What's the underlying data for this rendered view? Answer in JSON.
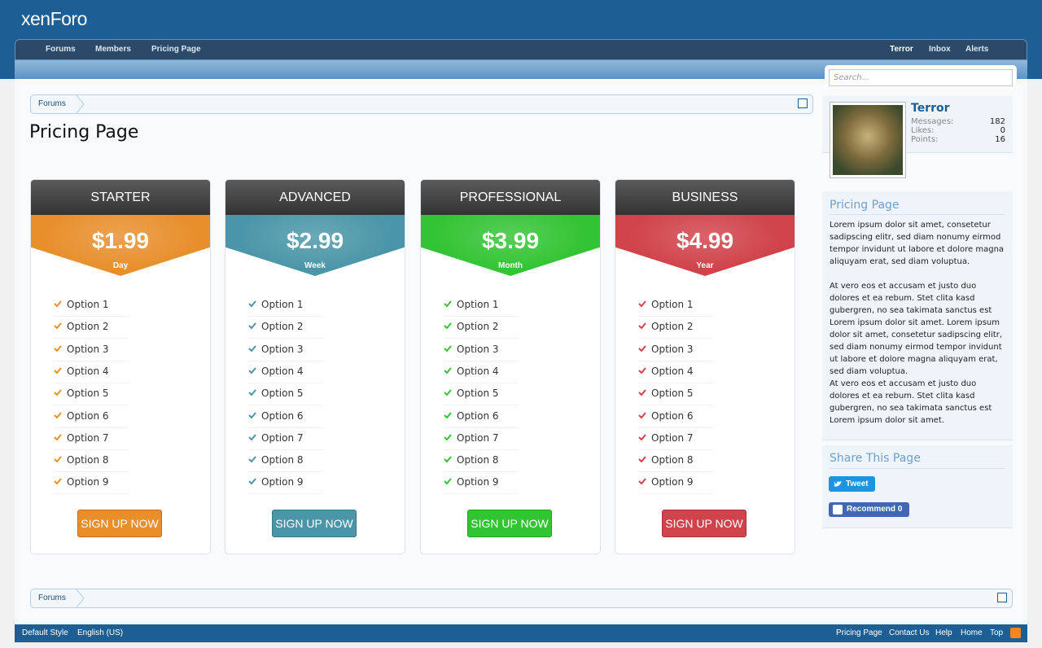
{
  "header": {
    "logo": "xenForo"
  },
  "nav": {
    "left": [
      "Forums",
      "Members",
      "Pricing Page"
    ],
    "right": [
      "Terror",
      "Inbox",
      "Alerts"
    ]
  },
  "search": {
    "placeholder": "Search..."
  },
  "breadcrumb": {
    "top": "Forums",
    "bottom": "Forums"
  },
  "page": {
    "title": "Pricing Page"
  },
  "plans": [
    {
      "name": "STARTER",
      "price": "$1.99",
      "period": "Day",
      "color": "#e88f2c",
      "options": [
        "Option 1",
        "Option 2",
        "Option 3",
        "Option 4",
        "Option 5",
        "Option 6",
        "Option 7",
        "Option 8",
        "Option 9"
      ],
      "button": "SIGN UP NOW"
    },
    {
      "name": "ADVANCED",
      "price": "$2.99",
      "period": "Week",
      "color": "#4a96a8",
      "options": [
        "Option 1",
        "Option 2",
        "Option 3",
        "Option 4",
        "Option 5",
        "Option 6",
        "Option 7",
        "Option 8",
        "Option 9"
      ],
      "button": "SIGN UP NOW"
    },
    {
      "name": "PROFESSIONAL",
      "price": "$3.99",
      "period": "Month",
      "color": "#33c433",
      "options": [
        "Option 1",
        "Option 2",
        "Option 3",
        "Option 4",
        "Option 5",
        "Option 6",
        "Option 7",
        "Option 8",
        "Option 9"
      ],
      "button": "SIGN UP NOW"
    },
    {
      "name": "BUSINESS",
      "price": "$4.99",
      "period": "Year",
      "color": "#d0434a",
      "options": [
        "Option 1",
        "Option 2",
        "Option 3",
        "Option 4",
        "Option 5",
        "Option 6",
        "Option 7",
        "Option 8",
        "Option 9"
      ],
      "button": "SIGN UP NOW"
    }
  ],
  "sidebar": {
    "user": {
      "name": "Terror",
      "stats": [
        {
          "label": "Messages:",
          "value": 182
        },
        {
          "label": "Likes:",
          "value": 0
        },
        {
          "label": "Points:",
          "value": 16
        }
      ]
    },
    "pricing": {
      "title": "Pricing Page",
      "paragraphs": [
        "Lorem ipsum dolor sit amet, consetetur sadipscing elitr, sed diam nonumy eirmod tempor invidunt ut labore et dolore magna aliquyam erat, sed diam voluptua.",
        "At vero eos et accusam et justo duo dolores et ea rebum. Stet clita kasd gubergren, no sea takimata sanctus est Lorem ipsum dolor sit amet. Lorem ipsum dolor sit amet, consetetur sadipscing elitr, sed diam nonumy eirmod tempor invidunt ut labore et dolore magna aliquyam erat, sed diam voluptua.",
        "At vero eos et accusam et justo duo dolores et ea rebum. Stet clita kasd gubergren, no sea takimata sanctus est Lorem ipsum dolor sit amet."
      ]
    },
    "share": {
      "title": "Share This Page",
      "tweet": "Tweet",
      "recommend": "Recommend",
      "recommend_count": 0
    }
  },
  "footer": {
    "left": [
      "Default Style",
      "English (US)"
    ],
    "right": [
      "Pricing Page",
      "Contact Us",
      "Help",
      "Home",
      "Top"
    ]
  }
}
